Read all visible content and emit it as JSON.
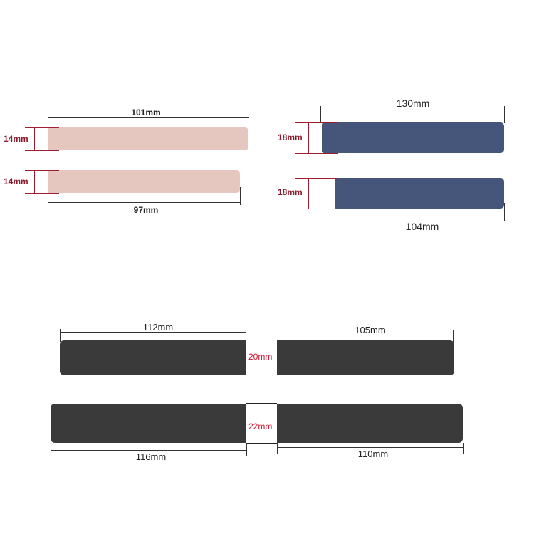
{
  "colors": {
    "pink": "#e5c7c0",
    "blue": "#46567a",
    "black": "#3a3a3a",
    "dim_red": "#8b1a2b",
    "dim_red_bright": "#d0102c"
  },
  "pink_strap": {
    "long_length": "101mm",
    "short_length": "97mm",
    "width_top": "14mm",
    "width_bottom": "14mm"
  },
  "blue_strap": {
    "long_length": "130mm",
    "short_length": "104mm",
    "width_top": "18mm",
    "width_bottom": "18mm"
  },
  "black_strap_20": {
    "left_length": "112mm",
    "right_length": "105mm",
    "width": "20mm"
  },
  "black_strap_22": {
    "left_length": "116mm",
    "right_length": "110mm",
    "width": "22mm"
  }
}
